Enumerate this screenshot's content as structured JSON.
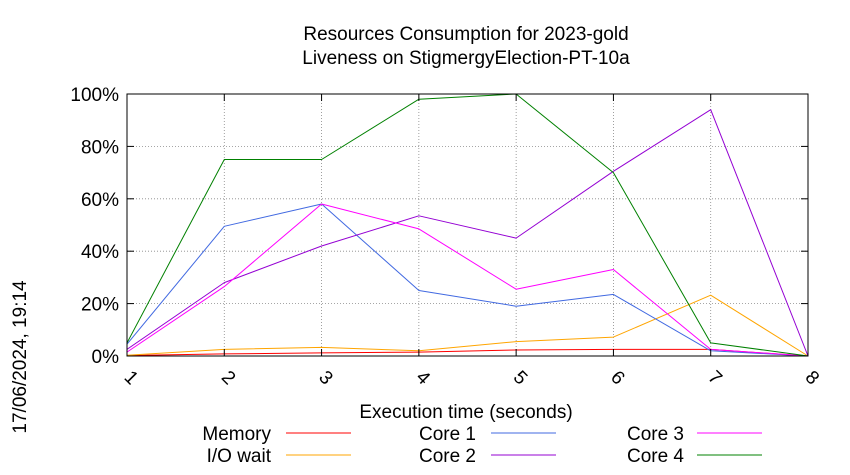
{
  "chart_data": {
    "type": "line",
    "title_line1": "Resources Consumption for 2023-gold",
    "title_line2": "Liveness on StigmergyElection-PT-10a",
    "xlabel": "Execution time (seconds)",
    "ylabel": "",
    "side_label": "17/06/2024, 19:14",
    "x": [
      1,
      2,
      3,
      4,
      5,
      6,
      7,
      8
    ],
    "xlim": [
      1,
      8
    ],
    "ylim": [
      0,
      100
    ],
    "yticks": [
      0,
      20,
      40,
      60,
      80,
      100
    ],
    "ytick_labels": [
      "0%",
      "20%",
      "40%",
      "60%",
      "80%",
      "100%"
    ],
    "xtick_labels": [
      "1",
      "2",
      "3",
      "4",
      "5",
      "6",
      "7",
      "8"
    ],
    "grid": true,
    "legend_position": "bottom",
    "series": [
      {
        "name": "Memory",
        "color": "#ff0000",
        "values": [
          0.2,
          0.8,
          1.2,
          1.5,
          2.3,
          2.5,
          2.5,
          0
        ]
      },
      {
        "name": "I/O wait",
        "color": "#ffa500",
        "values": [
          0.3,
          2.5,
          3.3,
          2.0,
          5.5,
          7.2,
          23.2,
          0
        ]
      },
      {
        "name": "Core 1",
        "color": "#4169e1",
        "values": [
          4.5,
          49.5,
          58.0,
          25.0,
          19.0,
          23.5,
          2.0,
          0
        ]
      },
      {
        "name": "Core 2",
        "color": "#9400d3",
        "values": [
          2.5,
          28.0,
          42.0,
          53.5,
          45.0,
          70.5,
          94.0,
          0
        ]
      },
      {
        "name": "Core 3",
        "color": "#ff00ff",
        "values": [
          1.5,
          26.5,
          58.0,
          48.5,
          25.5,
          33.0,
          2.5,
          0
        ]
      },
      {
        "name": "Core 4",
        "color": "#008000",
        "values": [
          5.0,
          75.0,
          75.0,
          98.0,
          100.0,
          70.0,
          5.0,
          0
        ]
      }
    ]
  }
}
